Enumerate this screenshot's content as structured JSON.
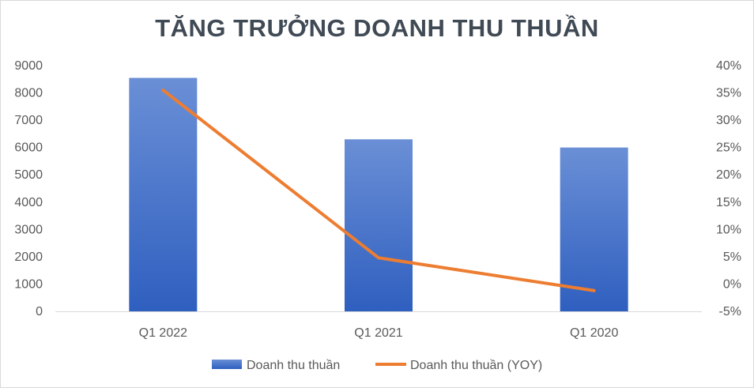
{
  "chart_data": {
    "type": "bar",
    "title": "TĂNG TRƯỞNG DOANH THU THUẦN",
    "categories": [
      "Q1 2022",
      "Q1 2021",
      "Q1 2020"
    ],
    "series": [
      {
        "name": "Doanh thu thuần",
        "type": "bar",
        "axis": "left",
        "values": [
          8550,
          6300,
          6000
        ],
        "color": "#4472c4"
      },
      {
        "name": "Doanh thu thuần (YOY)",
        "type": "line",
        "axis": "right",
        "values": [
          35.5,
          4.8,
          -1.2
        ],
        "color": "#ed7d31"
      }
    ],
    "y_left": {
      "ylim": [
        0,
        9000
      ],
      "ticks": [
        "0",
        "1000",
        "2000",
        "3000",
        "4000",
        "5000",
        "6000",
        "7000",
        "8000",
        "9000"
      ]
    },
    "y_right": {
      "ylim": [
        -5,
        40
      ],
      "ticks": [
        "-5%",
        "0%",
        "5%",
        "10%",
        "15%",
        "20%",
        "25%",
        "30%",
        "35%",
        "40%"
      ]
    },
    "grid": false,
    "legend": "bottom"
  }
}
